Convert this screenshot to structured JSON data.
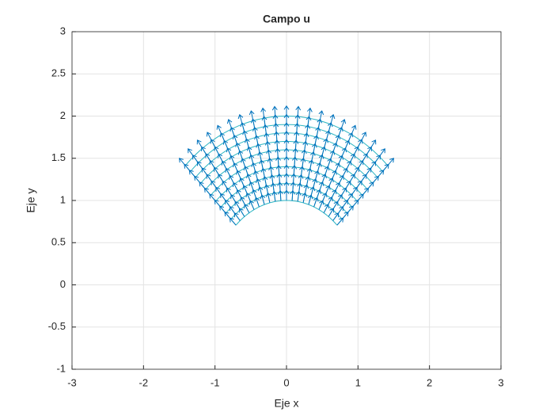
{
  "chart_data": {
    "type": "quiver",
    "title": "Campo u",
    "x_label": "Eje x",
    "y_label": "Eje y",
    "r": [
      1,
      1.1,
      1.2,
      1.3,
      1.4,
      1.5,
      1.6,
      1.7,
      1.8,
      1.9,
      2
    ],
    "theta": [
      45,
      49.5,
      54,
      58.5,
      63,
      67.5,
      72,
      76.5,
      81,
      85.5,
      90,
      94.5,
      99,
      103.5,
      108,
      112.5,
      117,
      121.5,
      126,
      130.5,
      135
    ],
    "u_r": [
      0.12,
      0.12,
      0.12,
      0.12,
      0.12,
      0.12,
      0.12,
      0.12,
      0.12,
      0.12,
      0.12
    ],
    "mesh_color": "#2bb5c2",
    "arrow_color": "#0072bd",
    "xlim": [
      -3,
      3
    ],
    "xticks": [
      -3,
      -2,
      -1,
      0,
      1,
      2,
      3
    ],
    "ylim": [
      -1,
      3
    ],
    "yticks": [
      -1,
      -0.5,
      0,
      0.5,
      1,
      1.5,
      2,
      2.5,
      3
    ],
    "grid": true
  }
}
